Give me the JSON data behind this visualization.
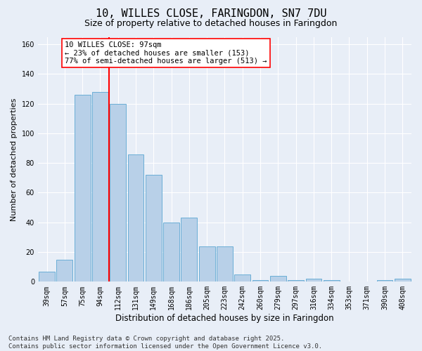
{
  "title": "10, WILLES CLOSE, FARINGDON, SN7 7DU",
  "subtitle": "Size of property relative to detached houses in Faringdon",
  "xlabel": "Distribution of detached houses by size in Faringdon",
  "ylabel": "Number of detached properties",
  "categories": [
    "39sqm",
    "57sqm",
    "75sqm",
    "94sqm",
    "112sqm",
    "131sqm",
    "149sqm",
    "168sqm",
    "186sqm",
    "205sqm",
    "223sqm",
    "242sqm",
    "260sqm",
    "279sqm",
    "297sqm",
    "316sqm",
    "334sqm",
    "353sqm",
    "371sqm",
    "390sqm",
    "408sqm"
  ],
  "values": [
    7,
    15,
    126,
    128,
    120,
    86,
    72,
    40,
    43,
    24,
    24,
    5,
    1,
    4,
    1,
    2,
    1,
    0,
    0,
    1,
    2
  ],
  "bar_color": "#b8d0e8",
  "bar_edge_color": "#6aaed6",
  "vline_x": 3.5,
  "vline_color": "red",
  "annotation_text": "10 WILLES CLOSE: 97sqm\n← 23% of detached houses are smaller (153)\n77% of semi-detached houses are larger (513) →",
  "annotation_box_color": "white",
  "annotation_box_edge": "red",
  "ylim": [
    0,
    165
  ],
  "yticks": [
    0,
    20,
    40,
    60,
    80,
    100,
    120,
    140,
    160
  ],
  "background_color": "#e8eef7",
  "plot_bg_color": "#e8eef7",
  "footer": "Contains HM Land Registry data © Crown copyright and database right 2025.\nContains public sector information licensed under the Open Government Licence v3.0.",
  "title_fontsize": 11,
  "subtitle_fontsize": 9,
  "xlabel_fontsize": 8.5,
  "ylabel_fontsize": 8,
  "tick_fontsize": 7,
  "footer_fontsize": 6.5,
  "annot_fontsize": 7.5
}
